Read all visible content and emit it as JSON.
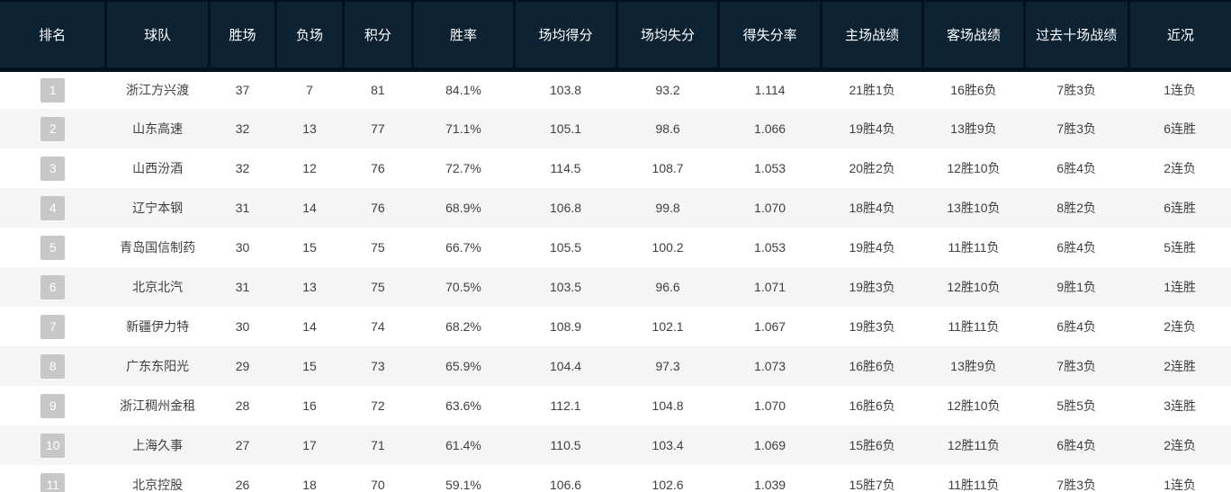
{
  "colors": {
    "header_bg": "#0d2334",
    "header_border": "#04121f",
    "header_text": "#ffffff",
    "row_bg": "#ffffff",
    "row_alt_bg": "#f5f5f5",
    "body_text": "#3f3f3f",
    "rank_badge_bg": "#c7c7c7",
    "rank_badge_text": "#ffffff"
  },
  "chart_data": {
    "type": "table",
    "title": "",
    "columns": [
      {
        "key": "rank",
        "label": "排名"
      },
      {
        "key": "team",
        "label": "球队"
      },
      {
        "key": "wins",
        "label": "胜场"
      },
      {
        "key": "losses",
        "label": "负场"
      },
      {
        "key": "points",
        "label": "积分"
      },
      {
        "key": "win_rate",
        "label": "胜率"
      },
      {
        "key": "avg_for",
        "label": "场均得分"
      },
      {
        "key": "avg_against",
        "label": "场均失分"
      },
      {
        "key": "ratio",
        "label": "得失分率"
      },
      {
        "key": "home",
        "label": "主场战绩"
      },
      {
        "key": "away",
        "label": "客场战绩"
      },
      {
        "key": "last10",
        "label": "过去十场战绩"
      },
      {
        "key": "streak",
        "label": "近况"
      }
    ],
    "rows": [
      {
        "rank": "1",
        "team": "浙江方兴渡",
        "wins": "37",
        "losses": "7",
        "points": "81",
        "win_rate": "84.1%",
        "avg_for": "103.8",
        "avg_against": "93.2",
        "ratio": "1.114",
        "home": "21胜1负",
        "away": "16胜6负",
        "last10": "7胜3负",
        "streak": "1连负"
      },
      {
        "rank": "2",
        "team": "山东高速",
        "wins": "32",
        "losses": "13",
        "points": "77",
        "win_rate": "71.1%",
        "avg_for": "105.1",
        "avg_against": "98.6",
        "ratio": "1.066",
        "home": "19胜4负",
        "away": "13胜9负",
        "last10": "7胜3负",
        "streak": "6连胜"
      },
      {
        "rank": "3",
        "team": "山西汾酒",
        "wins": "32",
        "losses": "12",
        "points": "76",
        "win_rate": "72.7%",
        "avg_for": "114.5",
        "avg_against": "108.7",
        "ratio": "1.053",
        "home": "20胜2负",
        "away": "12胜10负",
        "last10": "6胜4负",
        "streak": "2连负"
      },
      {
        "rank": "4",
        "team": "辽宁本钢",
        "wins": "31",
        "losses": "14",
        "points": "76",
        "win_rate": "68.9%",
        "avg_for": "106.8",
        "avg_against": "99.8",
        "ratio": "1.070",
        "home": "18胜4负",
        "away": "13胜10负",
        "last10": "8胜2负",
        "streak": "6连胜"
      },
      {
        "rank": "5",
        "team": "青岛国信制药",
        "wins": "30",
        "losses": "15",
        "points": "75",
        "win_rate": "66.7%",
        "avg_for": "105.5",
        "avg_against": "100.2",
        "ratio": "1.053",
        "home": "19胜4负",
        "away": "11胜11负",
        "last10": "6胜4负",
        "streak": "5连胜"
      },
      {
        "rank": "6",
        "team": "北京北汽",
        "wins": "31",
        "losses": "13",
        "points": "75",
        "win_rate": "70.5%",
        "avg_for": "103.5",
        "avg_against": "96.6",
        "ratio": "1.071",
        "home": "19胜3负",
        "away": "12胜10负",
        "last10": "9胜1负",
        "streak": "1连胜"
      },
      {
        "rank": "7",
        "team": "新疆伊力特",
        "wins": "30",
        "losses": "14",
        "points": "74",
        "win_rate": "68.2%",
        "avg_for": "108.9",
        "avg_against": "102.1",
        "ratio": "1.067",
        "home": "19胜3负",
        "away": "11胜11负",
        "last10": "6胜4负",
        "streak": "2连负"
      },
      {
        "rank": "8",
        "team": "广东东阳光",
        "wins": "29",
        "losses": "15",
        "points": "73",
        "win_rate": "65.9%",
        "avg_for": "104.4",
        "avg_against": "97.3",
        "ratio": "1.073",
        "home": "16胜6负",
        "away": "13胜9负",
        "last10": "7胜3负",
        "streak": "2连胜"
      },
      {
        "rank": "9",
        "team": "浙江稠州金租",
        "wins": "28",
        "losses": "16",
        "points": "72",
        "win_rate": "63.6%",
        "avg_for": "112.1",
        "avg_against": "104.8",
        "ratio": "1.070",
        "home": "16胜6负",
        "away": "12胜10负",
        "last10": "5胜5负",
        "streak": "3连胜"
      },
      {
        "rank": "10",
        "team": "上海久事",
        "wins": "27",
        "losses": "17",
        "points": "71",
        "win_rate": "61.4%",
        "avg_for": "110.5",
        "avg_against": "103.4",
        "ratio": "1.069",
        "home": "15胜6负",
        "away": "12胜11负",
        "last10": "6胜4负",
        "streak": "2连负"
      },
      {
        "rank": "11",
        "team": "北京控股",
        "wins": "26",
        "losses": "18",
        "points": "70",
        "win_rate": "59.1%",
        "avg_for": "106.6",
        "avg_against": "102.6",
        "ratio": "1.039",
        "home": "15胜7负",
        "away": "11胜11负",
        "last10": "7胜3负",
        "streak": "1连负"
      }
    ]
  }
}
